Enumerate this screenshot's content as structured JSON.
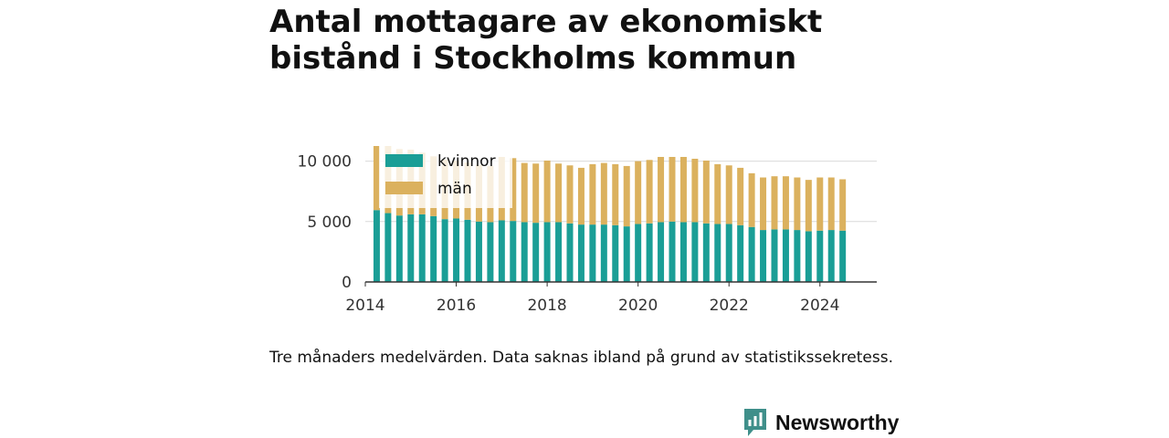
{
  "title": "Antal mottagare av ekonomiskt bistånd i Stockholms kommun",
  "note": "Tre månaders medelvärden. Data saknas ibland på grund av statistikssekretess.",
  "brand": {
    "name": "Newsworthy",
    "color": "#3f8f8a"
  },
  "chart_data": {
    "type": "bar",
    "stacked": true,
    "x_dates": [
      "2014-04",
      "2014-07",
      "2014-10",
      "2015-01",
      "2015-04",
      "2015-07",
      "2015-10",
      "2016-01",
      "2016-04",
      "2016-07",
      "2016-10",
      "2017-01",
      "2017-04",
      "2017-07",
      "2017-10",
      "2018-01",
      "2018-04",
      "2018-07",
      "2018-10",
      "2019-01",
      "2019-04",
      "2019-07",
      "2019-10",
      "2020-01",
      "2020-04",
      "2020-07",
      "2020-10",
      "2021-01",
      "2021-04",
      "2021-07",
      "2021-10",
      "2022-01",
      "2022-04",
      "2022-07",
      "2022-10",
      "2023-01",
      "2023-04",
      "2023-07",
      "2023-10",
      "2024-01",
      "2024-04",
      "2024-07"
    ],
    "series": [
      {
        "name": "kvinnor",
        "color": "#1a9e96",
        "values": [
          5950,
          5700,
          5500,
          5600,
          5600,
          5450,
          5200,
          5250,
          5150,
          5000,
          4950,
          5100,
          5050,
          4950,
          4900,
          4950,
          4950,
          4850,
          4750,
          4750,
          4750,
          4700,
          4600,
          4800,
          4850,
          4950,
          5000,
          4950,
          4950,
          4850,
          4800,
          4800,
          4700,
          4550,
          4300,
          4350,
          4350,
          4300,
          4200,
          4250,
          4300,
          4250
        ]
      },
      {
        "name": "män",
        "color": "#dbb15e",
        "values": [
          5900,
          5600,
          5500,
          5350,
          5100,
          4950,
          4950,
          4800,
          4750,
          4700,
          4650,
          5250,
          5200,
          4900,
          4900,
          5100,
          4850,
          4800,
          4700,
          5000,
          5100,
          5050,
          5000,
          5200,
          5250,
          5400,
          5350,
          5400,
          5250,
          5200,
          4950,
          4850,
          4750,
          4450,
          4350,
          4400,
          4400,
          4350,
          4250,
          4400,
          4350,
          4250
        ]
      }
    ],
    "xlim": [
      "2014-01",
      "2025-04"
    ],
    "ylim": [
      0,
      10500
    ],
    "xticks": [
      "2014",
      "2016",
      "2018",
      "2020",
      "2022",
      "2024"
    ],
    "yticks": [
      "0",
      "5 000",
      "10 000"
    ],
    "grid": true,
    "legend": "top-left"
  }
}
